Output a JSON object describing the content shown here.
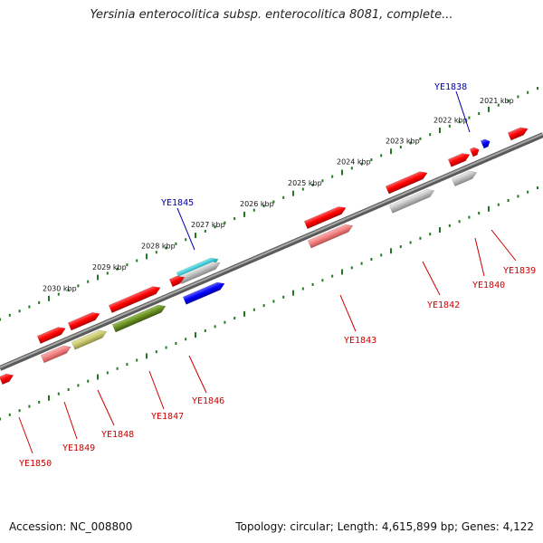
{
  "title": "Yersinia enterocolitica subsp. enterocolitica 8081, complete...",
  "footer": {
    "accession": "Accession: NC_008800",
    "summary": "Topology: circular; Length: 4,615,899 bp; Genes: 4,122"
  },
  "colors": {
    "backbone": "#7a7a7a",
    "tick": "#1e7a1e",
    "label_red": "#cc0000",
    "label_blue": "#0000aa"
  },
  "chart_data": {
    "type": "linear-genome-map",
    "scale_unit": "kbp",
    "scale_labels": [
      "2021 kbp",
      "2022 kbp",
      "2023 kbp",
      "2024 kbp",
      "2025 kbp",
      "2026 kbp",
      "2027 kbp",
      "2028 kbp",
      "2029 kbp",
      "2030 kbp"
    ],
    "genes": [
      {
        "label": "YE1838",
        "label_color": "blue"
      },
      {
        "label": "YE1839",
        "label_color": "red"
      },
      {
        "label": "YE1840",
        "label_color": "red"
      },
      {
        "label": "YE1842",
        "label_color": "red"
      },
      {
        "label": "YE1843",
        "label_color": "red"
      },
      {
        "label": "YE1845",
        "label_color": "blue"
      },
      {
        "label": "YE1846",
        "label_color": "red"
      },
      {
        "label": "YE1847",
        "label_color": "red"
      },
      {
        "label": "YE1848",
        "label_color": "red"
      },
      {
        "label": "YE1849",
        "label_color": "red"
      },
      {
        "label": "YE1850",
        "label_color": "red"
      }
    ]
  }
}
